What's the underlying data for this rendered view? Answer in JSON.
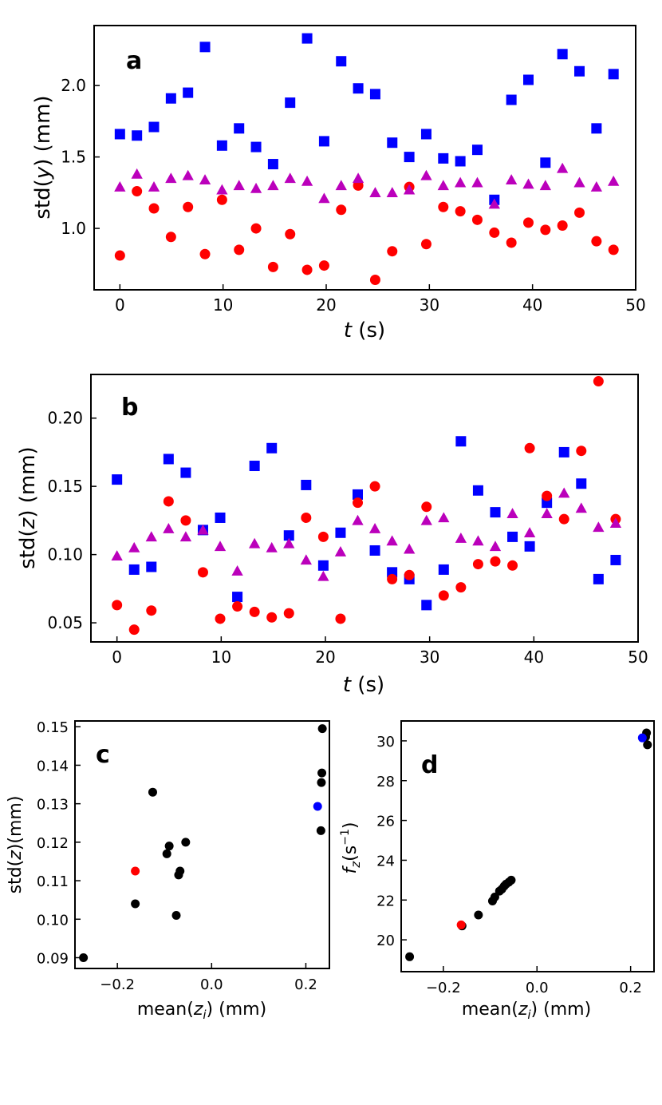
{
  "colors": {
    "red": "#ff0000",
    "blue": "#0000ff",
    "magenta": "#bb00bb",
    "black": "#000000"
  },
  "chart_data": [
    {
      "id": "a",
      "type": "scatter",
      "panel_label": "a",
      "xlabel": "t (s)",
      "ylabel": "std(y) (mm)",
      "xlim": [
        -2.5,
        50
      ],
      "ylim": [
        0.57,
        2.42
      ],
      "xticks": [
        0,
        10,
        20,
        30,
        40,
        50
      ],
      "xtick_labels": [
        "0",
        "10",
        "20",
        "30",
        "40",
        "50"
      ],
      "yticks": [
        1.0,
        1.5,
        2.0
      ],
      "ytick_labels": [
        "1.0",
        "1.5",
        "2.0"
      ],
      "series": [
        {
          "name": "squares",
          "marker": "square",
          "color": "#0000ff",
          "x": [
            0,
            1.65,
            3.3,
            4.95,
            6.6,
            8.25,
            9.9,
            11.55,
            13.2,
            14.85,
            16.5,
            18.15,
            19.8,
            21.45,
            23.1,
            24.75,
            26.4,
            28.05,
            29.7,
            31.35,
            33,
            34.65,
            36.3,
            37.95,
            39.6,
            41.25,
            42.9,
            44.55,
            46.2,
            47.85
          ],
          "y": [
            1.66,
            1.65,
            1.71,
            1.91,
            1.95,
            2.27,
            1.58,
            1.7,
            1.57,
            1.45,
            1.88,
            2.33,
            1.61,
            2.17,
            1.98,
            1.94,
            1.6,
            1.5,
            1.66,
            1.49,
            1.47,
            1.55,
            1.2,
            1.9,
            2.04,
            1.46,
            2.22,
            2.1,
            1.7,
            2.08
          ]
        },
        {
          "name": "circles",
          "marker": "circle",
          "color": "#ff0000",
          "x": [
            0,
            1.65,
            3.3,
            4.95,
            6.6,
            8.25,
            9.9,
            11.55,
            13.2,
            14.85,
            16.5,
            18.15,
            19.8,
            21.45,
            23.1,
            24.75,
            26.4,
            28.05,
            29.7,
            31.35,
            33,
            34.65,
            36.3,
            37.95,
            39.6,
            41.25,
            42.9,
            44.55,
            46.2,
            47.85
          ],
          "y": [
            0.81,
            1.26,
            1.14,
            0.94,
            1.15,
            0.82,
            1.2,
            0.85,
            1.0,
            0.73,
            0.96,
            0.71,
            0.74,
            1.13,
            1.3,
            0.64,
            0.84,
            1.29,
            0.89,
            1.15,
            1.12,
            1.06,
            0.97,
            0.9,
            1.04,
            0.99,
            1.02,
            1.11,
            0.91,
            0.85
          ]
        },
        {
          "name": "triangles",
          "marker": "triangle",
          "color": "#bb00bb",
          "x": [
            0,
            1.65,
            3.3,
            4.95,
            6.6,
            8.25,
            9.9,
            11.55,
            13.2,
            14.85,
            16.5,
            18.15,
            19.8,
            21.45,
            23.1,
            24.75,
            26.4,
            28.05,
            29.7,
            31.35,
            33,
            34.65,
            36.3,
            37.95,
            39.6,
            41.25,
            42.9,
            44.55,
            46.2,
            47.85
          ],
          "y": [
            1.29,
            1.38,
            1.29,
            1.35,
            1.37,
            1.34,
            1.27,
            1.3,
            1.28,
            1.3,
            1.35,
            1.33,
            1.21,
            1.3,
            1.35,
            1.25,
            1.25,
            1.27,
            1.37,
            1.3,
            1.32,
            1.32,
            1.17,
            1.34,
            1.31,
            1.3,
            1.42,
            1.32,
            1.29,
            1.33
          ]
        }
      ]
    },
    {
      "id": "b",
      "type": "scatter",
      "panel_label": "b",
      "xlabel": "t (s)",
      "ylabel": "std(z) (mm)",
      "xlim": [
        -2.5,
        50
      ],
      "ylim": [
        0.036,
        0.232
      ],
      "xticks": [
        0,
        10,
        20,
        30,
        40,
        50
      ],
      "xtick_labels": [
        "0",
        "10",
        "20",
        "30",
        "40",
        "50"
      ],
      "yticks": [
        0.05,
        0.1,
        0.15,
        0.2
      ],
      "ytick_labels": [
        "0.05",
        "0.10",
        "0.15",
        "0.20"
      ],
      "series": [
        {
          "name": "squares",
          "marker": "square",
          "color": "#0000ff",
          "x": [
            0,
            1.65,
            3.3,
            4.95,
            6.6,
            8.25,
            9.9,
            11.55,
            13.2,
            14.85,
            16.5,
            18.15,
            19.8,
            21.45,
            23.1,
            24.75,
            26.4,
            28.05,
            29.7,
            31.35,
            33,
            34.65,
            36.3,
            37.95,
            39.6,
            41.25,
            42.9,
            44.55,
            46.2,
            47.85
          ],
          "y": [
            0.155,
            0.089,
            0.091,
            0.17,
            0.16,
            0.118,
            0.127,
            0.069,
            0.165,
            0.178,
            0.114,
            0.151,
            0.092,
            0.116,
            0.144,
            0.103,
            0.087,
            0.082,
            0.063,
            0.089,
            0.183,
            0.147,
            0.131,
            0.113,
            0.106,
            0.138,
            0.175,
            0.152,
            0.082,
            0.096
          ]
        },
        {
          "name": "circles",
          "marker": "circle",
          "color": "#ff0000",
          "x": [
            0,
            1.65,
            3.3,
            4.95,
            6.6,
            8.25,
            9.9,
            11.55,
            13.2,
            14.85,
            16.5,
            18.15,
            19.8,
            21.45,
            23.1,
            24.75,
            26.4,
            28.05,
            29.7,
            31.35,
            33,
            34.65,
            36.3,
            37.95,
            39.6,
            41.25,
            42.9,
            44.55,
            46.2,
            47.85
          ],
          "y": [
            0.063,
            0.045,
            0.059,
            0.139,
            0.125,
            0.087,
            0.053,
            0.062,
            0.058,
            0.054,
            0.057,
            0.127,
            0.113,
            0.053,
            0.138,
            0.15,
            0.082,
            0.085,
            0.135,
            0.07,
            0.076,
            0.093,
            0.095,
            0.092,
            0.178,
            0.143,
            0.126,
            0.176,
            0.227,
            0.126
          ]
        },
        {
          "name": "triangles",
          "marker": "triangle",
          "color": "#bb00bb",
          "x": [
            0,
            1.65,
            3.3,
            4.95,
            6.6,
            8.25,
            9.9,
            11.55,
            13.2,
            14.85,
            16.5,
            18.15,
            19.8,
            21.45,
            23.1,
            24.75,
            26.4,
            28.05,
            29.7,
            31.35,
            33,
            34.65,
            36.3,
            37.95,
            39.6,
            41.25,
            42.9,
            44.55,
            46.2,
            47.85
          ],
          "y": [
            0.099,
            0.105,
            0.113,
            0.119,
            0.113,
            0.118,
            0.106,
            0.088,
            0.108,
            0.105,
            0.108,
            0.096,
            0.084,
            0.102,
            0.125,
            0.119,
            0.11,
            0.104,
            0.125,
            0.127,
            0.112,
            0.11,
            0.106,
            0.13,
            0.116,
            0.13,
            0.145,
            0.134,
            0.12,
            0.123
          ]
        }
      ]
    },
    {
      "id": "c",
      "type": "scatter",
      "panel_label": "c",
      "xlabel": "mean(z_i) (mm)",
      "ylabel": "std(z)(mm)",
      "xlim": [
        -0.29,
        0.25
      ],
      "ylim": [
        0.0872,
        0.1515
      ],
      "xticks": [
        -0.2,
        0.0,
        0.2
      ],
      "xtick_labels": [
        "−0.2",
        "0.0",
        "0.2"
      ],
      "yticks": [
        0.09,
        0.1,
        0.11,
        0.12,
        0.13,
        0.14,
        0.15
      ],
      "ytick_labels": [
        "0.09",
        "0.10",
        "0.11",
        "0.12",
        "0.13",
        "0.14",
        "0.15"
      ],
      "series": [
        {
          "name": "points",
          "marker": "circle",
          "color": "#000000",
          "x": [
            -0.272,
            -0.162,
            -0.125,
            -0.095,
            -0.09,
            -0.075,
            -0.07,
            -0.067,
            -0.055,
            0.232,
            0.233,
            0.234,
            0.235
          ],
          "y": [
            0.09,
            0.104,
            0.133,
            0.117,
            0.119,
            0.101,
            0.1115,
            0.1125,
            0.12,
            0.123,
            0.1355,
            0.138,
            0.1495
          ]
        },
        {
          "name": "red-point",
          "marker": "circle",
          "color": "#ff0000",
          "x": [
            -0.162
          ],
          "y": [
            0.1125
          ]
        },
        {
          "name": "blue-point",
          "marker": "circle",
          "color": "#0000ff",
          "x": [
            0.225
          ],
          "y": [
            0.1293
          ]
        }
      ]
    },
    {
      "id": "d",
      "type": "scatter",
      "panel_label": "d",
      "xlabel": "mean(z_i) (mm)",
      "ylabel": "f_z(s^-1)",
      "xlim": [
        -0.29,
        0.25
      ],
      "ylim": [
        18.4,
        31.0
      ],
      "xticks": [
        -0.2,
        0.0,
        0.2
      ],
      "xtick_labels": [
        "−0.2",
        "0.0",
        "0.2"
      ],
      "yticks": [
        20,
        22,
        24,
        26,
        28,
        30
      ],
      "ytick_labels": [
        "20",
        "22",
        "24",
        "26",
        "28",
        "30"
      ],
      "series": [
        {
          "name": "points",
          "marker": "circle",
          "color": "#000000",
          "x": [
            -0.272,
            -0.16,
            -0.125,
            -0.095,
            -0.09,
            -0.08,
            -0.075,
            -0.07,
            -0.066,
            -0.06,
            -0.055,
            0.232,
            0.234,
            0.236
          ],
          "y": [
            19.15,
            20.7,
            21.25,
            21.95,
            22.15,
            22.45,
            22.55,
            22.7,
            22.8,
            22.9,
            23.0,
            30.2,
            30.4,
            29.8
          ]
        },
        {
          "name": "red-point",
          "marker": "circle",
          "color": "#ff0000",
          "x": [
            -0.162
          ],
          "y": [
            20.75
          ]
        },
        {
          "name": "blue-point",
          "marker": "circle",
          "color": "#0000ff",
          "x": [
            0.225
          ],
          "y": [
            30.15
          ]
        }
      ]
    }
  ]
}
